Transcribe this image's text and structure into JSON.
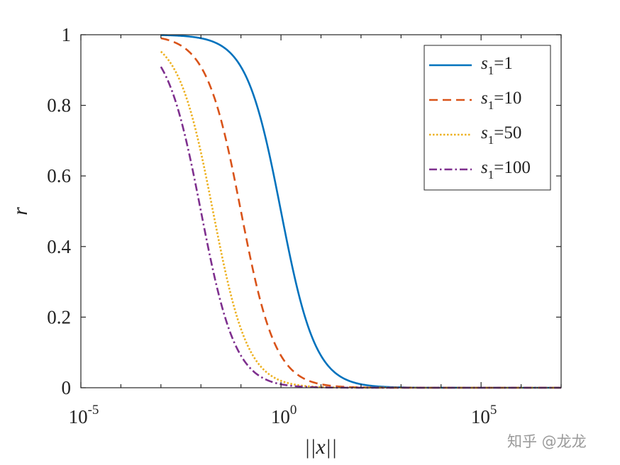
{
  "chart_data": {
    "type": "line",
    "xlabel": "||x||",
    "ylabel": "r",
    "xscale": "log",
    "xlim": [
      1e-05,
      10000000
    ],
    "ylim": [
      0,
      1
    ],
    "grid": false,
    "legend_position": "top-right",
    "xticks": [
      {
        "base": "10",
        "exp": "-5",
        "value": 1e-05
      },
      {
        "base": "10",
        "exp": "0",
        "value": 1
      },
      {
        "base": "10",
        "exp": "5",
        "value": 100000
      }
    ],
    "yticks": [
      "0",
      "0.2",
      "0.4",
      "0.6",
      "0.8",
      "1"
    ],
    "x_start": 0.001,
    "series": [
      {
        "name": "s1=1",
        "label_var": "s",
        "label_sub": "1",
        "label_rest": "=1",
        "color": "#0072BD",
        "style": "solid",
        "x_at_half": 1,
        "steepness": 1.0
      },
      {
        "name": "s1=10",
        "label_var": "s",
        "label_sub": "1",
        "label_rest": "=10",
        "color": "#D95319",
        "style": "dashed",
        "x_at_half": 0.1,
        "steepness": 1.0
      },
      {
        "name": "s1=50",
        "label_var": "s",
        "label_sub": "1",
        "label_rest": "=50",
        "color": "#EDB120",
        "style": "dotted",
        "x_at_half": 0.02,
        "steepness": 1.0
      },
      {
        "name": "s1=100",
        "label_var": "s",
        "label_sub": "1",
        "label_rest": "=100",
        "color": "#7E2F8E",
        "style": "dashdot",
        "x_at_half": 0.01,
        "steepness": 1.0
      }
    ]
  },
  "watermark": "知乎 @龙龙"
}
